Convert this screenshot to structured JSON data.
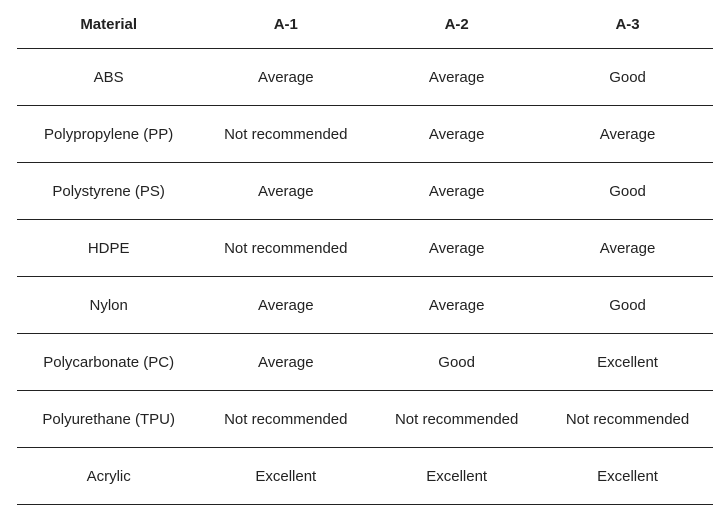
{
  "table": {
    "header": [
      "Material",
      "A-1",
      "A-2",
      "A-3"
    ],
    "rows": [
      [
        "ABS",
        "Average",
        "Average",
        "Good"
      ],
      [
        "Polypropylene (PP)",
        "Not recommended",
        "Average",
        "Average"
      ],
      [
        "Polystyrene (PS)",
        "Average",
        "Average",
        "Good"
      ],
      [
        "HDPE",
        "Not recommended",
        "Average",
        "Average"
      ],
      [
        "Nylon",
        "Average",
        "Average",
        "Good"
      ],
      [
        "Polycarbonate (PC)",
        "Average",
        "Good",
        "Excellent"
      ],
      [
        "Polyurethane (TPU)",
        "Not recommended",
        "Not recommended",
        "Not recommended"
      ],
      [
        "Acrylic",
        "Excellent",
        "Excellent",
        "Excellent"
      ]
    ]
  }
}
